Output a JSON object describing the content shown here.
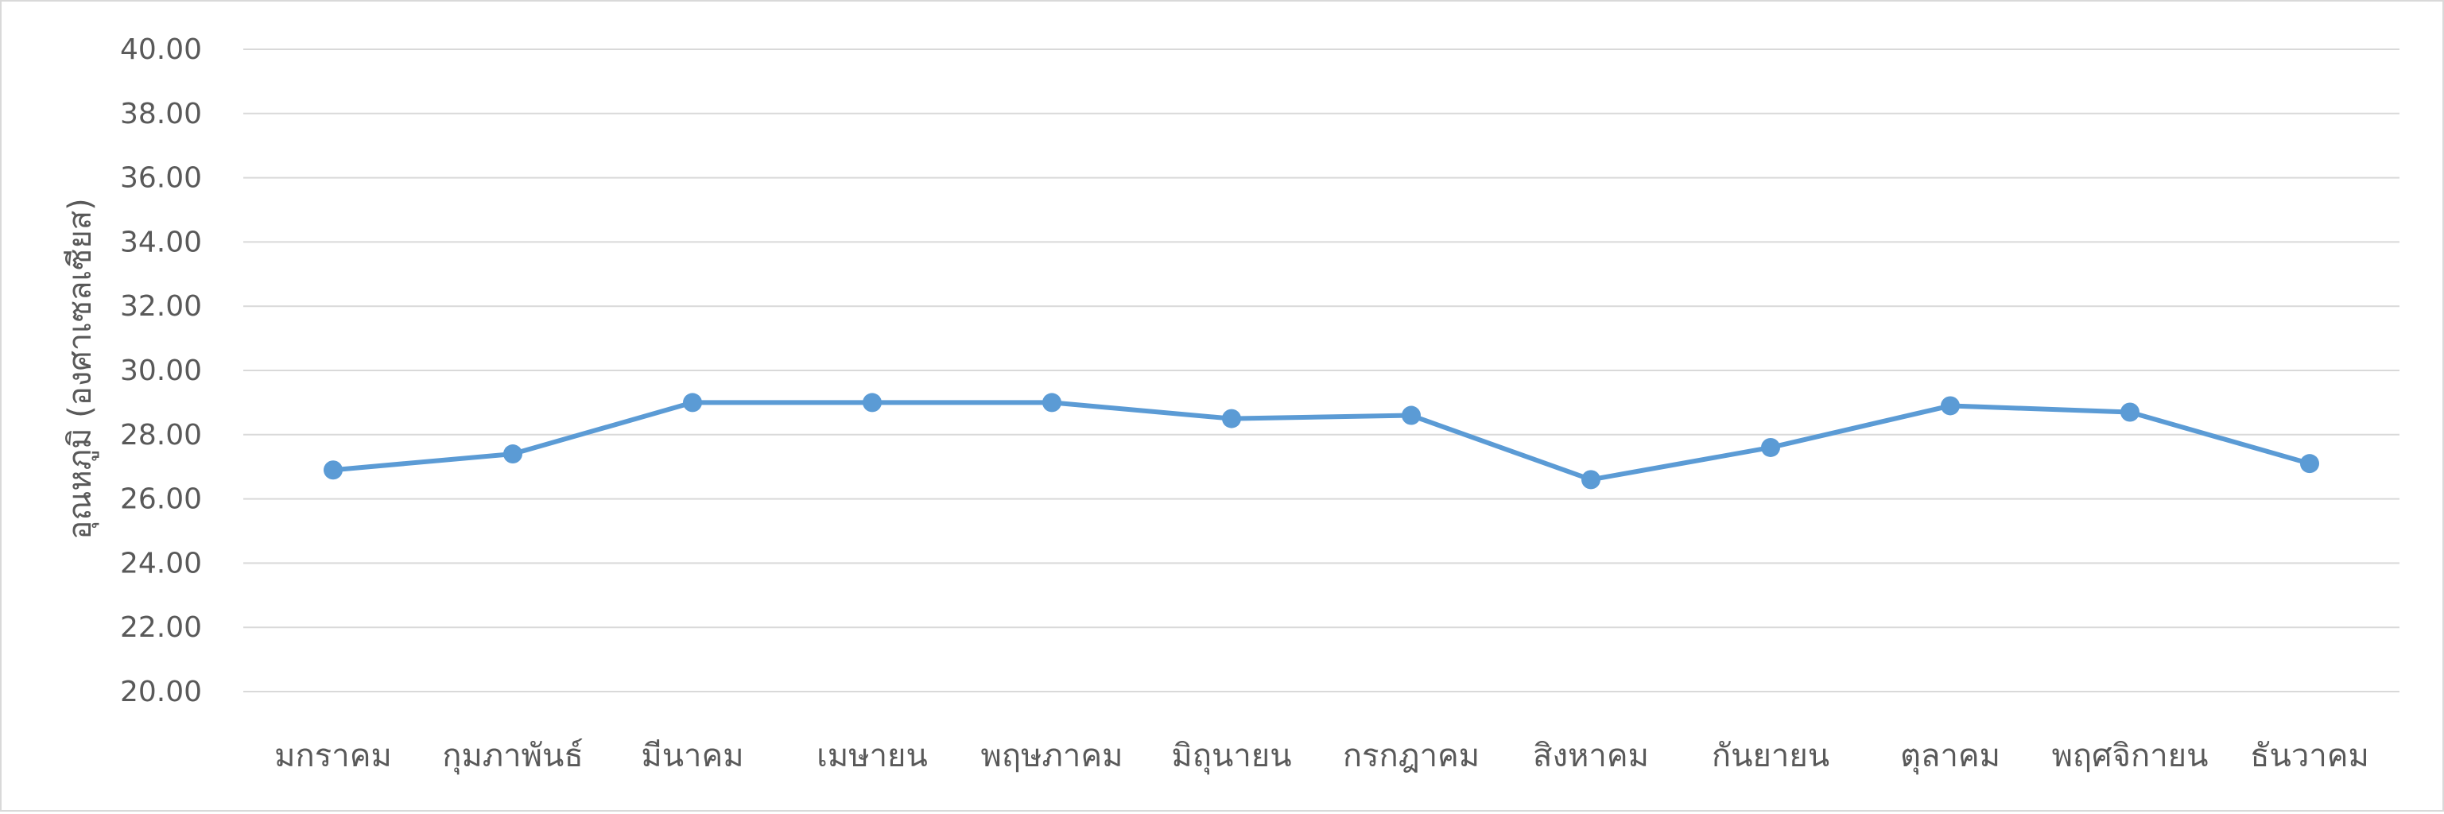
{
  "chart_data": {
    "type": "line",
    "title": "",
    "xlabel": "",
    "ylabel": "อุณหภูมิ (องศาเซลเซียส)",
    "ylim": [
      20,
      40
    ],
    "ytick_step": 2,
    "ytick_labels": [
      "20.00",
      "22.00",
      "24.00",
      "26.00",
      "28.00",
      "30.00",
      "32.00",
      "34.00",
      "36.00",
      "38.00",
      "40.00"
    ],
    "grid": true,
    "legend": "none",
    "categories": [
      "มกราคม",
      "กุมภาพันธ์",
      "มีนาคม",
      "เมษายน",
      "พฤษภาคม",
      "มิถุนายน",
      "กรกฎาคม",
      "สิงหาคม",
      "กันยายน",
      "ตุลาคม",
      "พฤศจิกายน",
      "ธันวาคม"
    ],
    "series": [
      {
        "color": "#5b9bd5",
        "values": [
          26.9,
          27.4,
          29.0,
          29.0,
          29.0,
          28.5,
          28.6,
          26.6,
          27.6,
          28.9,
          28.7,
          27.1
        ]
      }
    ]
  }
}
